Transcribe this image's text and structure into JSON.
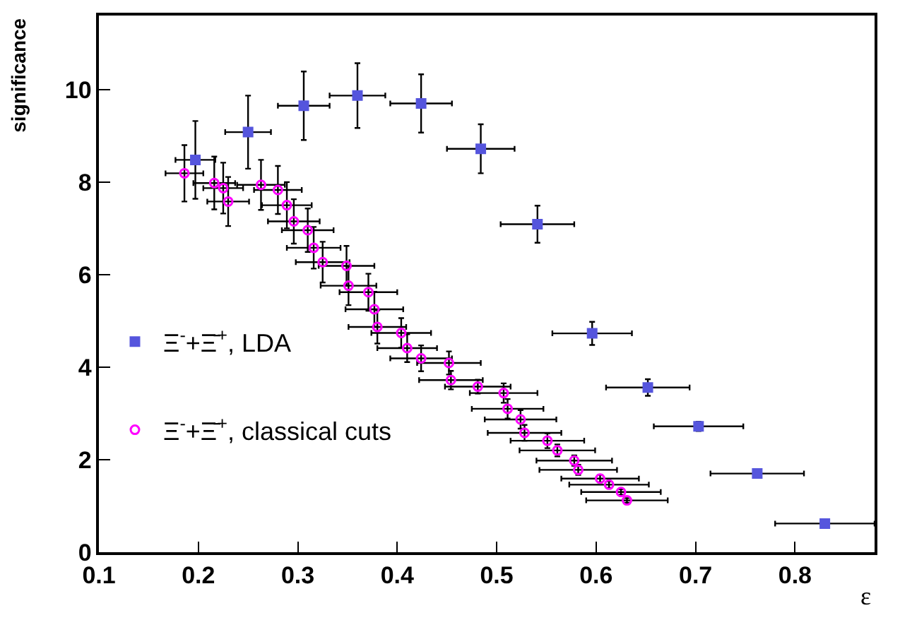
{
  "chart_data": {
    "type": "scatter",
    "xlabel": "ε",
    "ylabel": "significance",
    "xlim": [
      0.1,
      0.88
    ],
    "ylim": [
      0,
      11.6
    ],
    "xticks": [
      0.1,
      0.2,
      0.3,
      0.4,
      0.5,
      0.6,
      0.7,
      0.8
    ],
    "yticks": [
      0,
      2,
      4,
      6,
      8,
      10
    ],
    "legend": "left",
    "series": [
      {
        "name": "Ξ$^{-}$+Ξ̄$^{+}$, LDA",
        "color": "#5555dd",
        "marker": "square",
        "x": [
          0.197,
          0.25,
          0.306,
          0.36,
          0.424,
          0.484,
          0.541,
          0.596,
          0.652,
          0.703,
          0.762,
          0.83
        ],
        "values": [
          8.48,
          9.08,
          9.65,
          9.87,
          9.7,
          8.72,
          7.09,
          4.73,
          3.56,
          2.72,
          1.7,
          0.62
        ],
        "errors": [
          0.84,
          0.79,
          0.74,
          0.7,
          0.63,
          0.53,
          0.4,
          0.25,
          0.18,
          0.1,
          null,
          null
        ],
        "xerrors": [
          0.02,
          0.023,
          0.026,
          0.028,
          0.031,
          0.034,
          0.037,
          0.04,
          0.042,
          0.045,
          0.047,
          0.05
        ]
      },
      {
        "name": "Ξ$^{-}$+Ξ̄$^{+}$, classical cuts",
        "color": "#ff00ff",
        "marker": "circle",
        "x": [
          0.186,
          0.216,
          0.225,
          0.23,
          0.263,
          0.28,
          0.289,
          0.296,
          0.31,
          0.316,
          0.325,
          0.349,
          0.351,
          0.371,
          0.377,
          0.38,
          0.404,
          0.41,
          0.424,
          0.452,
          0.454,
          0.481,
          0.507,
          0.511,
          0.524,
          0.528,
          0.551,
          0.561,
          0.578,
          0.582,
          0.604,
          0.613,
          0.625,
          0.631
        ],
        "values": [
          8.19,
          7.98,
          7.87,
          7.58,
          7.94,
          7.83,
          7.5,
          7.15,
          6.96,
          6.58,
          6.27,
          6.19,
          5.76,
          5.62,
          5.25,
          4.87,
          4.74,
          4.41,
          4.19,
          4.09,
          3.72,
          3.58,
          3.44,
          3.1,
          2.87,
          2.58,
          2.41,
          2.2,
          1.98,
          1.78,
          1.59,
          1.46,
          1.3,
          1.12
        ],
        "errors": [
          0.61,
          0.57,
          0.55,
          0.53,
          0.54,
          0.52,
          0.5,
          0.48,
          0.47,
          0.45,
          0.44,
          0.43,
          0.42,
          0.4,
          0.38,
          0.36,
          0.32,
          0.3,
          0.28,
          0.25,
          0.2,
          0.15,
          0.21,
          0.21,
          0.2,
          0.17,
          0.16,
          0.13,
          0.11,
          0.11,
          0.08,
          0.07,
          0.06,
          0.05
        ],
        "xerrors": [
          0.019,
          0.021,
          0.02,
          0.021,
          0.024,
          0.024,
          0.025,
          0.026,
          0.026,
          0.027,
          0.027,
          0.028,
          0.028,
          0.029,
          0.029,
          0.029,
          0.03,
          0.03,
          0.031,
          0.032,
          0.032,
          0.033,
          0.034,
          0.036,
          0.036,
          0.037,
          0.037,
          0.038,
          0.038,
          0.039,
          0.039,
          0.04,
          0.04,
          0.041
        ]
      }
    ]
  }
}
